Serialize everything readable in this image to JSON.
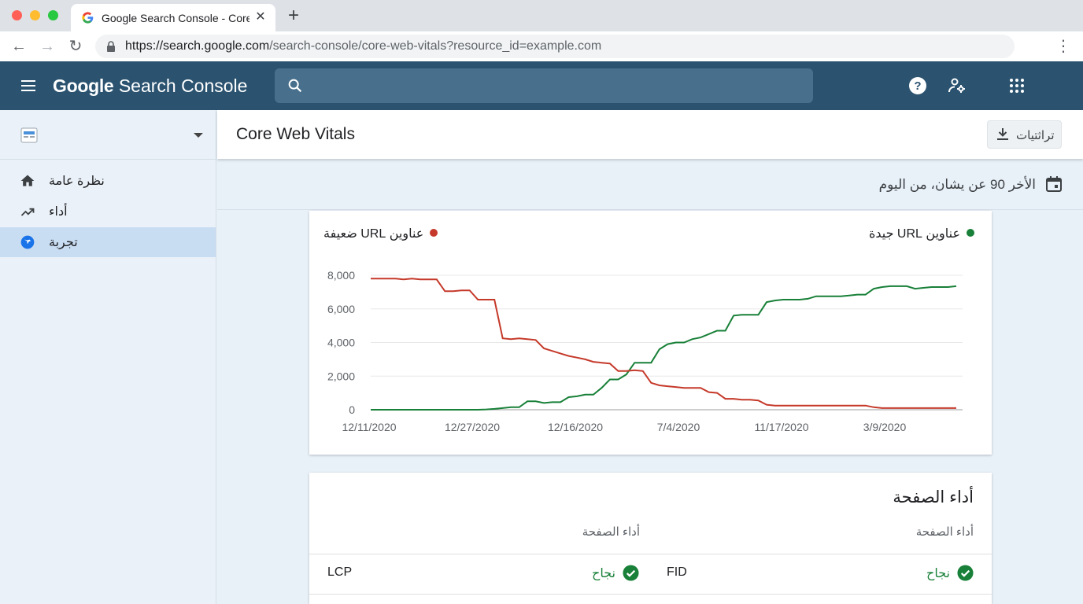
{
  "browser": {
    "tab_title": "Google Search Console - Core Web Vitals",
    "url_host": "https://search.google.com",
    "url_path": "/search-console/core-web-vitals?resource_id=example.com"
  },
  "app": {
    "product_google": "Google",
    "product_suffix": "Search Console",
    "search_placeholder": ""
  },
  "sidebar": {
    "items": [
      {
        "label": "نظرة عامة",
        "icon": "home-icon"
      },
      {
        "label": "أداء",
        "icon": "trending-up-icon"
      },
      {
        "label": "تجربة",
        "icon": "experience-icon",
        "active": true
      }
    ]
  },
  "page": {
    "title": "Core Web Vitals",
    "export_label": "تراثتيات",
    "date_range": "الأخر 90 عن يشان، من اليوم"
  },
  "chart_data": {
    "type": "line",
    "x_ticks": [
      "12/11/2020",
      "12/27/2020",
      "12/16/2020",
      "7/4/2020",
      "11/17/2020",
      "3/9/2020"
    ],
    "y_ticks": [
      "8,000",
      "6,000",
      "4,000",
      "2,000",
      "0"
    ],
    "ylim": [
      0,
      8000
    ],
    "legend_position": "top",
    "grid": true,
    "series": [
      {
        "name": "عناوين URL جيدة",
        "color": "#188038",
        "values": [
          0,
          0,
          0,
          0,
          0,
          0,
          0,
          0,
          0,
          0,
          0,
          0,
          0,
          0,
          20,
          50,
          100,
          150,
          150,
          500,
          500,
          400,
          450,
          450,
          750,
          800,
          900,
          900,
          1300,
          1800,
          1800,
          2100,
          2800,
          2800,
          2800,
          3600,
          3900,
          4000,
          4000,
          4200,
          4300,
          4500,
          4700,
          4700,
          5600,
          5650,
          5650,
          5650,
          6400,
          6500,
          6550,
          6550,
          6550,
          6600,
          6750,
          6750,
          6750,
          6750,
          6800,
          6850,
          6850,
          7200,
          7300,
          7350,
          7350,
          7350,
          7200,
          7250,
          7300,
          7300,
          7300,
          7350
        ]
      },
      {
        "name": "عناوين URL ضعيفة",
        "color": "#c5392a",
        "values": [
          7800,
          7800,
          7800,
          7800,
          7750,
          7800,
          7750,
          7750,
          7750,
          7050,
          7050,
          7100,
          7100,
          6550,
          6550,
          6550,
          4250,
          4200,
          4250,
          4200,
          4150,
          3650,
          3500,
          3350,
          3200,
          3100,
          3000,
          2850,
          2800,
          2750,
          2300,
          2300,
          2350,
          2300,
          1600,
          1450,
          1400,
          1350,
          1300,
          1300,
          1300,
          1050,
          1000,
          650,
          650,
          600,
          600,
          550,
          300,
          250,
          250,
          250,
          250,
          250,
          250,
          250,
          250,
          250,
          250,
          250,
          250,
          150,
          100,
          100,
          100,
          100,
          100,
          100,
          100,
          100,
          100,
          100
        ]
      }
    ]
  },
  "table": {
    "title": "أداء الصفحة",
    "col_head_1": "أداء الصفحة",
    "col_head_2": "أداء الصفحة",
    "rows": [
      {
        "metric_a": "FID",
        "status_a": "نجاح",
        "metric_b": "LCP",
        "status_b": "نجاح"
      }
    ]
  },
  "colors": {
    "header_bg": "#2b5370",
    "good": "#188038",
    "poor": "#c5392a"
  }
}
